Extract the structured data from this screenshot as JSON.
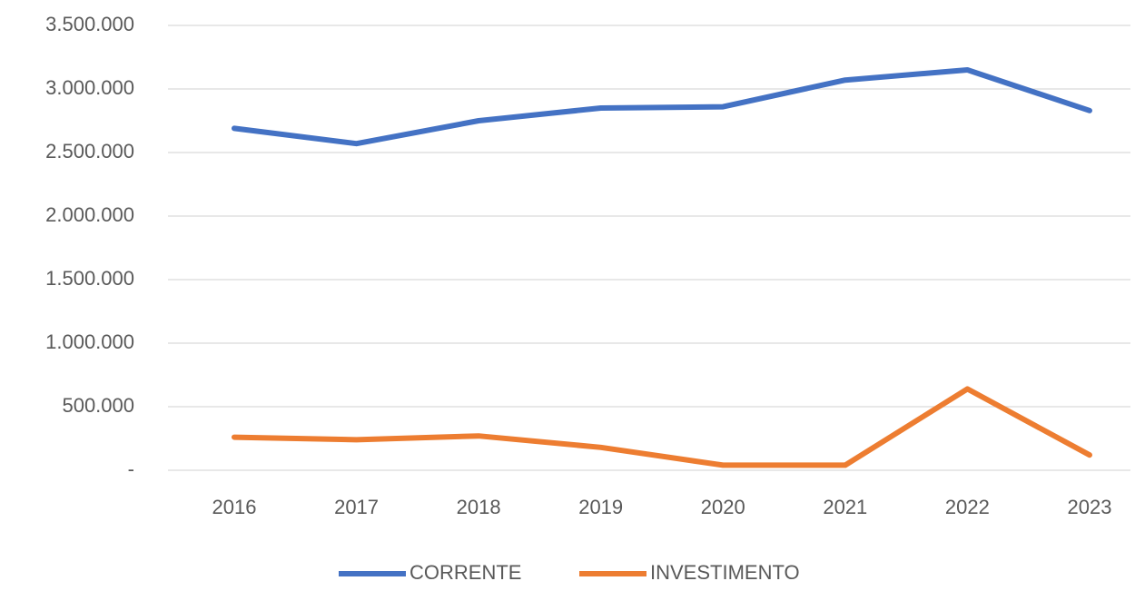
{
  "chart_data": {
    "type": "line",
    "categories": [
      "2016",
      "2017",
      "2018",
      "2019",
      "2020",
      "2021",
      "2022",
      "2023"
    ],
    "series": [
      {
        "name": "CORRENTE",
        "color": "#4472c4",
        "values": [
          2690000,
          2570000,
          2750000,
          2850000,
          2860000,
          3070000,
          3150000,
          2830000
        ]
      },
      {
        "name": "INVESTIMENTO",
        "color": "#ed7d31",
        "values": [
          260000,
          240000,
          270000,
          180000,
          40000,
          40000,
          640000,
          120000
        ]
      }
    ],
    "ylim": [
      0,
      3500000
    ],
    "yticks": [
      {
        "value": 0,
        "label": "-"
      },
      {
        "value": 500000,
        "label": "500.000"
      },
      {
        "value": 1000000,
        "label": "1.000.000"
      },
      {
        "value": 1500000,
        "label": "1.500.000"
      },
      {
        "value": 2000000,
        "label": "2.000.000"
      },
      {
        "value": 2500000,
        "label": "2.500.000"
      },
      {
        "value": 3000000,
        "label": "3.000.000"
      },
      {
        "value": 3500000,
        "label": "3.500.000"
      }
    ],
    "grid": true,
    "legend": "bottom"
  }
}
